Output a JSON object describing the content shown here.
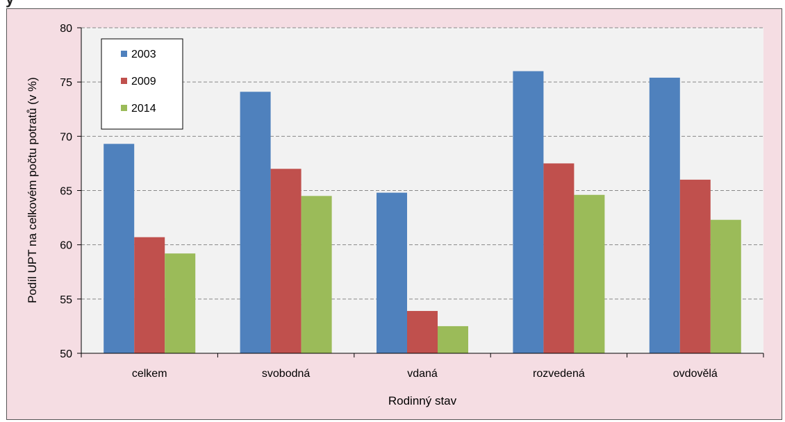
{
  "header_fragment": "y",
  "chart_data": {
    "type": "bar",
    "title": "",
    "xlabel": "Rodinný stav",
    "ylabel": "Podíl UPT na celkovém počtu potratů (v %)",
    "ylim": [
      50,
      80
    ],
    "yticks": [
      50,
      55,
      60,
      65,
      70,
      75,
      80
    ],
    "grid": true,
    "legend_position": "top-left",
    "categories": [
      "celkem",
      "svobodná",
      "vdaná",
      "rozvedená",
      "ovdovělá"
    ],
    "series": [
      {
        "name": "2003",
        "color": "#4f81bd",
        "values": [
          69.3,
          74.1,
          64.8,
          76.0,
          75.4
        ]
      },
      {
        "name": "2009",
        "color": "#c0504d",
        "values": [
          60.7,
          67.0,
          53.9,
          67.5,
          66.0
        ]
      },
      {
        "name": "2014",
        "color": "#9bbb59",
        "values": [
          59.2,
          64.5,
          52.5,
          64.6,
          62.3
        ]
      }
    ]
  }
}
